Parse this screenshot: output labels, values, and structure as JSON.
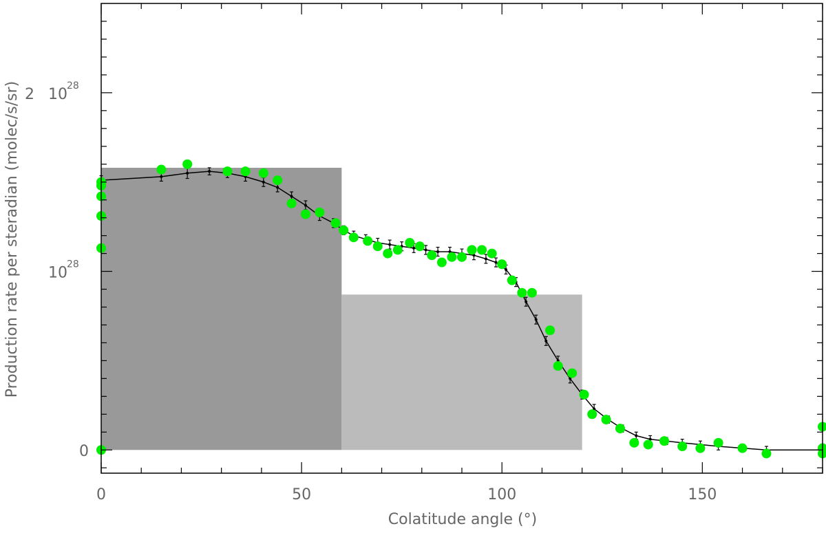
{
  "chart_data": {
    "type": "scatter",
    "title": "",
    "xlabel": "Colatitude angle (°)",
    "ylabel": "Production rate per steradian (molec/s/sr)",
    "xlim": [
      0,
      180
    ],
    "ylim": [
      -1.3e+27,
      2.5e+28
    ],
    "x_ticks": [
      {
        "value": 0,
        "label": "0"
      },
      {
        "value": 50,
        "label": "50"
      },
      {
        "value": 100,
        "label": "100"
      },
      {
        "value": 150,
        "label": "150"
      }
    ],
    "y_ticks": [
      {
        "value": 0,
        "label": "0"
      },
      {
        "value": 1e+28,
        "label_prefix": "",
        "label_base": "10",
        "label_exp": "28"
      },
      {
        "value": 2e+28,
        "label_prefix": "2",
        "label_base": "10",
        "label_exp": "28"
      }
    ],
    "colors": {
      "bar_dark": "#999999",
      "bar_light": "#bbbbbb",
      "points": "#00ee00",
      "model_line": "#000000",
      "frame": "#000000",
      "text": "#666666"
    },
    "bars": [
      {
        "x0": 0,
        "x1": 60,
        "value": 1.58e+28,
        "shade": "dark"
      },
      {
        "x0": 60,
        "x1": 120,
        "value": 8.7e+27,
        "shade": "light"
      }
    ],
    "series": [
      {
        "kind": "points",
        "x": [
          0,
          0,
          0,
          0,
          0,
          0,
          15,
          21.5,
          31.5,
          36,
          40.5,
          44,
          47.5,
          51,
          54.5,
          58.5,
          60.5,
          63,
          66.5,
          69,
          71.5,
          74,
          77,
          79.5,
          82.5,
          85,
          87.5,
          90,
          92.5,
          95,
          97.5,
          100,
          102.5,
          105,
          107.5,
          112,
          114,
          117.5,
          120.5,
          122.5,
          126,
          129.5,
          133,
          136.5,
          140.5,
          145,
          149.5,
          154,
          160,
          166,
          180,
          180,
          180
        ],
        "y": [
          1.5e+28,
          1.48e+28,
          1.42e+28,
          1.31e+28,
          1.13e+28,
          0,
          1.57e+28,
          1.6e+28,
          1.56e+28,
          1.56e+28,
          1.55e+28,
          1.51e+28,
          1.38e+28,
          1.32e+28,
          1.33e+28,
          1.27e+28,
          1.23e+28,
          1.19e+28,
          1.17e+28,
          1.14e+28,
          1.1e+28,
          1.12e+28,
          1.16e+28,
          1.14e+28,
          1.09e+28,
          1.05e+28,
          1.08e+28,
          1.08e+28,
          1.12e+28,
          1.12e+28,
          1.1e+28,
          1.04e+28,
          9.5e+27,
          8.8e+27,
          8.8e+27,
          6.7e+27,
          4.7e+27,
          4.3e+27,
          3.1e+27,
          2e+27,
          1.7e+27,
          1.2e+27,
          4e+26,
          3e+26,
          5e+26,
          2e+26,
          1e+26,
          4e+26,
          1e+26,
          -2e+26,
          1.3e+27,
          1e+26,
          -2e+26
        ]
      },
      {
        "kind": "model_with_errors",
        "x": [
          0,
          15,
          21.5,
          27,
          31.5,
          36,
          40.5,
          44,
          47.5,
          51,
          54.5,
          58,
          60.5,
          63,
          66,
          69,
          72,
          75,
          78,
          81,
          84,
          87,
          90,
          93,
          96,
          98.5,
          101,
          103.5,
          106,
          108.5,
          111,
          114,
          117,
          120,
          123,
          126.5,
          130,
          133.5,
          137,
          141,
          145,
          149.5,
          154,
          160,
          166,
          180
        ],
        "y": [
          1.51e+28,
          1.53e+28,
          1.55e+28,
          1.56e+28,
          1.55e+28,
          1.53e+28,
          1.5e+28,
          1.47e+28,
          1.42e+28,
          1.37e+28,
          1.31e+28,
          1.27e+28,
          1.23e+28,
          1.2e+28,
          1.18e+28,
          1.16e+28,
          1.15e+28,
          1.14e+28,
          1.13e+28,
          1.12e+28,
          1.11e+28,
          1.11e+28,
          1.1e+28,
          1.09e+28,
          1.07e+28,
          1.05e+28,
          1.01e+28,
          9.4e+27,
          8.3e+27,
          7.3e+27,
          6.1e+27,
          5e+27,
          4e+27,
          3.1e+27,
          2.3e+27,
          1.7e+27,
          1.2e+27,
          8e+26,
          6e+26,
          5e+26,
          4e+26,
          3e+26,
          2e+26,
          1e+26,
          0.0,
          0.0
        ],
        "err": [
          2.5e+26,
          2.5e+26,
          3e+26,
          2e+26,
          2.5e+26,
          2.5e+26,
          2.5e+26,
          2.5e+26,
          2.5e+26,
          2.5e+26,
          2.5e+26,
          2.5e+26,
          2.5e+26,
          2.5e+26,
          2.5e+26,
          2.5e+26,
          2.5e+26,
          2.5e+26,
          2.5e+26,
          2.5e+26,
          2.5e+26,
          2.5e+26,
          2.5e+26,
          2.5e+26,
          2.5e+26,
          2.5e+26,
          2.5e+26,
          2.5e+26,
          2.5e+26,
          2.5e+26,
          2.5e+26,
          2.5e+26,
          2.5e+26,
          2.5e+26,
          2.5e+26,
          2e+26,
          2e+26,
          2e+26,
          2e+26,
          2e+26,
          2e+26,
          2e+26,
          2e+26,
          2e+26,
          2e+26,
          2e+26
        ]
      }
    ]
  }
}
